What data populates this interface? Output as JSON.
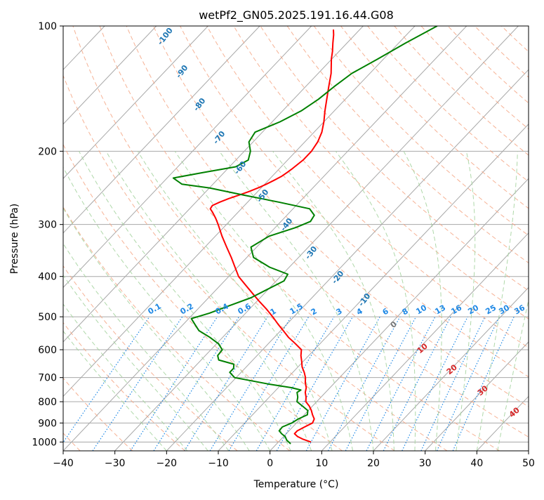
{
  "chart_data": {
    "type": "line",
    "subtype": "skew-t log-p diagram",
    "title": "wetPf2_GN05.2025.191.16.44.G08",
    "xlabel": "Temperature (°C)",
    "ylabel": "Pressure (hPa)",
    "xlim": [
      -40,
      50
    ],
    "ylim": [
      1050,
      100
    ],
    "y_scale": "log",
    "grid": true,
    "x_ticks": [
      -40,
      -30,
      -20,
      -10,
      0,
      10,
      20,
      30,
      40,
      50
    ],
    "x_tick_labels": [
      "−40",
      "−30",
      "−20",
      "−10",
      "0",
      "10",
      "20",
      "30",
      "40",
      "50"
    ],
    "y_ticks": [
      100,
      200,
      300,
      400,
      500,
      600,
      700,
      800,
      900,
      1000
    ],
    "y_tick_labels": [
      "100",
      "200",
      "300",
      "400",
      "500",
      "600",
      "700",
      "800",
      "900",
      "1000"
    ],
    "series": [
      {
        "name": "",
        "color": "#ff0000",
        "pressure": [
          1000,
          985,
          970,
          955,
          940,
          920,
          900,
          880,
          860,
          840,
          820,
          800,
          780,
          760,
          740,
          720,
          700,
          680,
          660,
          640,
          620,
          600,
          580,
          560,
          540,
          520,
          500,
          480,
          460,
          440,
          420,
          400,
          380,
          360,
          340,
          320,
          300,
          290,
          280,
          275,
          270,
          265,
          260,
          255,
          250,
          245,
          240,
          235,
          230,
          225,
          220,
          210,
          200,
          190,
          180,
          170,
          160,
          150,
          140,
          130,
          120,
          115,
          110,
          105,
          102
        ],
        "temperature": [
          6.3,
          4.3,
          2.7,
          1.6,
          1.6,
          2.3,
          3.1,
          2.7,
          1.6,
          0.6,
          -0.6,
          -2.1,
          -2.9,
          -3.9,
          -4.6,
          -5.7,
          -6.6,
          -7.8,
          -9.2,
          -10.3,
          -11.5,
          -12.5,
          -14.8,
          -17.3,
          -19.5,
          -21.8,
          -24.1,
          -26.6,
          -29.4,
          -32.2,
          -35.1,
          -38.1,
          -40.5,
          -43.0,
          -45.8,
          -48.7,
          -51.6,
          -53.2,
          -55.0,
          -56.0,
          -56.2,
          -55.4,
          -54.3,
          -53.0,
          -51.7,
          -50.6,
          -49.7,
          -48.9,
          -48.2,
          -47.8,
          -47.5,
          -47.0,
          -47.0,
          -47.5,
          -48.5,
          -50.0,
          -51.8,
          -53.6,
          -55.5,
          -57.5,
          -60.1,
          -61.3,
          -62.7,
          -64.1,
          -65.1
        ]
      },
      {
        "name": "",
        "color": "#008000",
        "pressure": [
          1010,
          990,
          970,
          955,
          940,
          920,
          900,
          880,
          860,
          840,
          820,
          800,
          780,
          760,
          750,
          740,
          725,
          700,
          680,
          665,
          650,
          635,
          620,
          600,
          580,
          560,
          540,
          520,
          505,
          490,
          470,
          450,
          430,
          410,
          395,
          380,
          360,
          340,
          320,
          305,
          295,
          285,
          275,
          265,
          255,
          245,
          240,
          232,
          225,
          218,
          210,
          200,
          190,
          180,
          170,
          160,
          150,
          140,
          130,
          120,
          110,
          100
        ],
        "temperature": [
          2.7,
          1.3,
          0.3,
          -0.9,
          -1.9,
          -2.0,
          -0.9,
          -0.4,
          0.6,
          -0.1,
          -1.9,
          -3.8,
          -4.5,
          -5.5,
          -5.2,
          -7.5,
          -12.7,
          -20.3,
          -22.2,
          -22.2,
          -22.9,
          -26.6,
          -27.6,
          -27.8,
          -29.7,
          -32.5,
          -35.8,
          -37.9,
          -39.5,
          -37.0,
          -34.5,
          -31.8,
          -30.2,
          -28.5,
          -29.0,
          -33.8,
          -38.7,
          -41.1,
          -39.6,
          -36.0,
          -34.3,
          -34.7,
          -36.8,
          -44.0,
          -52.0,
          -60.0,
          -66.0,
          -68.8,
          -64.0,
          -58.8,
          -57.6,
          -58.8,
          -60.8,
          -61.4,
          -58.5,
          -56.4,
          -55.2,
          -54.5,
          -53.5,
          -51.1,
          -48.7,
          -45.7
        ]
      }
    ],
    "dry_adiabat_labels": [
      "-100",
      "-90",
      "-80",
      "-70",
      "-60",
      "-50",
      "-40",
      "-30",
      "-20",
      "-10"
    ],
    "moist_adiabat_labels": [
      "0",
      "10",
      "20",
      "30",
      "40"
    ],
    "mixing_ratio_labels": [
      "0.1",
      "0.2",
      "0.4",
      "0.6",
      "1",
      "1.5",
      "2",
      "3",
      "4",
      "6",
      "8",
      "10",
      "13",
      "16",
      "20",
      "25",
      "30",
      "36"
    ],
    "colors": {
      "isotherms": "#a8a8a8",
      "dry_adiabats": "#f4a582",
      "moist_adiabats": "#a6d4a0",
      "mixing_ratio": "#1e88e5",
      "dry_adiabat_text": "#1f77b4",
      "moist_adiabat_text": "#d62728"
    }
  }
}
